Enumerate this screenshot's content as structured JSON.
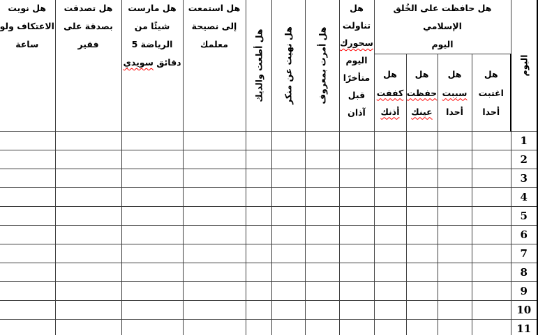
{
  "page": {
    "background": "#ffffff",
    "border_color": "#000000",
    "misspell_underline_color": "#ff0000"
  },
  "table": {
    "description_lang": "ar",
    "day": {
      "header": "اليوم",
      "numbers": [
        "1",
        "2",
        "3",
        "4",
        "5",
        "6",
        "7",
        "8",
        "9",
        "10",
        "11"
      ]
    },
    "group_header": "هل حافظت على الخُلق الإسلامي\nاليوم",
    "cols": {
      "ghibah": {
        "l1": "هل",
        "l2": "اغتبت",
        "l3": "أحدا"
      },
      "sabb": {
        "l1": "هل",
        "l2": "سببت",
        "l3": "أحدا"
      },
      "eye": {
        "l1": "هل",
        "l2": "حفظت",
        "l3": "عينك"
      },
      "ear": {
        "l1": "هل",
        "l2": "كففت",
        "l3": "أذنك"
      },
      "suhoor": {
        "l1": "هل",
        "l2": "تناولت",
        "l3": "سحورك",
        "l4": "اليوم",
        "l5": "متأخرًا",
        "l6": "قبل",
        "l7": "آذان"
      },
      "enjoin_good": "هل أمرت بمعروف",
      "forbid_evil": "هل نهيت عن منكر",
      "obey_parents": "هل أطعت والديك",
      "teacher_advice": "هل استمعت\nإلى نصيحة\nمعلمك",
      "exercise": {
        "l1": "هل مارست",
        "l2": "شيئًا من",
        "l3": "الرياضة 5",
        "l4a": "دقائق",
        "l4b": "سويدي"
      },
      "charity": "هل تصدقت\nبصدقة على\nفقير",
      "itikaf": "هل نويت\nالاعتكاف ولو\nساعة"
    }
  }
}
